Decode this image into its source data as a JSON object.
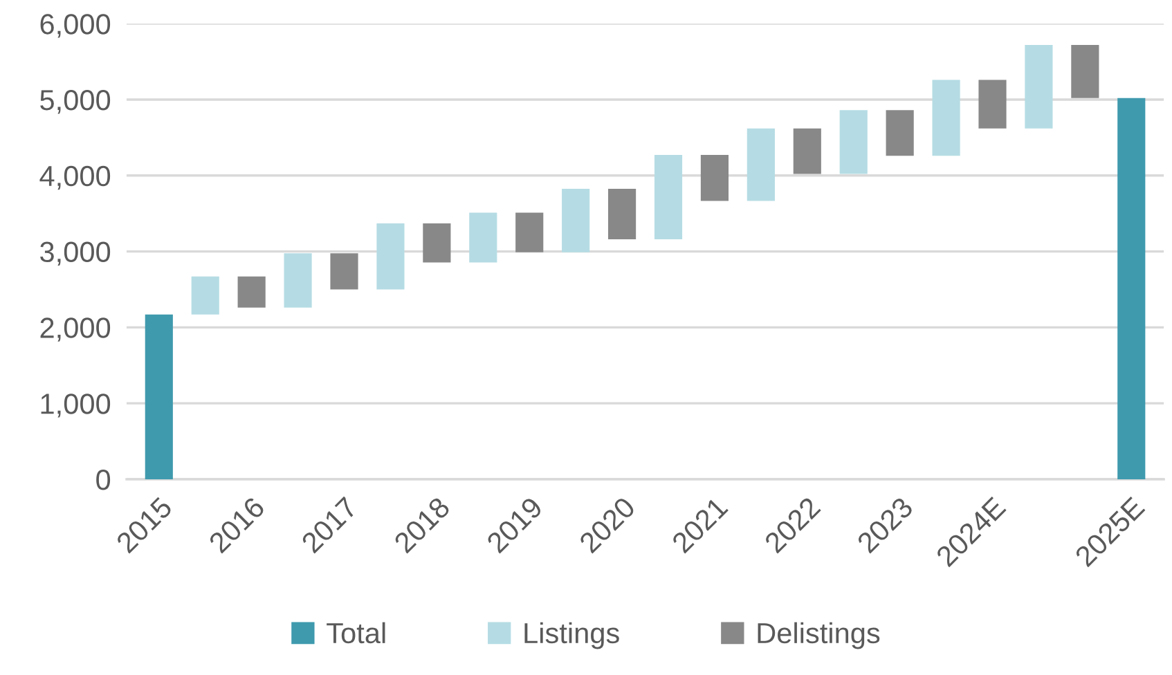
{
  "chart_data": {
    "type": "bar",
    "categories": [
      "2015",
      null,
      "2016",
      null,
      "2017",
      null,
      "2018",
      null,
      "2019",
      null,
      "2020",
      null,
      "2021",
      null,
      "2022",
      null,
      "2023",
      null,
      "2024E",
      null,
      null,
      "2025E"
    ],
    "series": [
      {
        "name": "Total",
        "color": "#3f9aae",
        "values": [
          2170,
          null,
          null,
          null,
          null,
          null,
          null,
          null,
          null,
          null,
          null,
          null,
          null,
          null,
          null,
          null,
          null,
          null,
          null,
          null,
          null,
          5020
        ],
        "base": [
          0,
          null,
          null,
          null,
          null,
          null,
          null,
          null,
          null,
          null,
          null,
          null,
          null,
          null,
          null,
          null,
          null,
          null,
          null,
          null,
          null,
          0
        ]
      },
      {
        "name": "Listings",
        "color": "#b5dce4",
        "values": [
          null,
          500,
          null,
          715,
          null,
          870,
          null,
          655,
          null,
          835,
          null,
          1110,
          null,
          955,
          null,
          840,
          null,
          1000,
          null,
          1100,
          null,
          null
        ],
        "base": [
          null,
          2170,
          null,
          2260,
          null,
          2500,
          null,
          2855,
          null,
          2990,
          null,
          3160,
          null,
          3665,
          null,
          4020,
          null,
          4260,
          null,
          4620,
          null,
          null
        ]
      },
      {
        "name": "Delistings",
        "color": "#888888",
        "values": [
          null,
          null,
          410,
          null,
          475,
          null,
          515,
          null,
          520,
          null,
          665,
          null,
          605,
          null,
          600,
          null,
          600,
          null,
          640,
          null,
          700,
          null
        ],
        "base": [
          null,
          null,
          2260,
          null,
          2500,
          null,
          2855,
          null,
          2990,
          null,
          3160,
          null,
          3665,
          null,
          4020,
          null,
          4260,
          null,
          4620,
          null,
          5020,
          null
        ]
      }
    ],
    "ylim": [
      0,
      6000
    ],
    "yticks": [
      {
        "value": 0,
        "label": "0"
      },
      {
        "value": 1000,
        "label": "1,000"
      },
      {
        "value": 2000,
        "label": "2,000"
      },
      {
        "value": 3000,
        "label": "3,000"
      },
      {
        "value": 4000,
        "label": "4,000"
      },
      {
        "value": 5000,
        "label": "5,000"
      },
      {
        "value": 6000,
        "label": "6,000"
      }
    ],
    "grid": "y",
    "legend": "bottom"
  }
}
